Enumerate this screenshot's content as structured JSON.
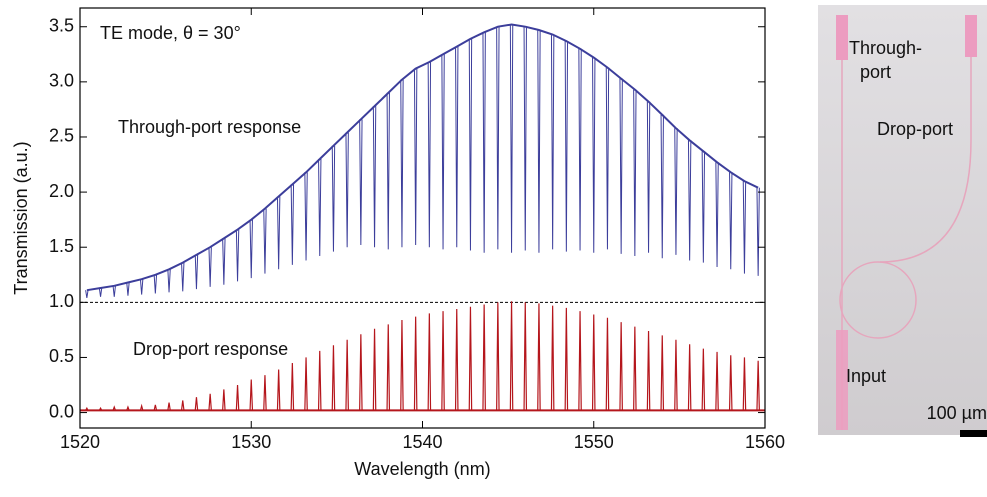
{
  "chart_data": {
    "type": "resonance",
    "annotation": "TE mode, θ = 30°",
    "xlabel": "Wavelength (nm)",
    "ylabel": "Transmission (a.u.)",
    "xlim": [
      1520,
      1560
    ],
    "xticks": [
      1520,
      1530,
      1540,
      1550,
      1560
    ],
    "ylim": [
      -0.14,
      3.67
    ],
    "yticks": [
      {
        "value": 0,
        "label": "0.0"
      },
      {
        "value": 0.5,
        "label": "0.5"
      },
      {
        "value": 1,
        "label": "1.0"
      },
      {
        "value": 1.5,
        "label": "1.5"
      },
      {
        "value": 2,
        "label": "2.0"
      },
      {
        "value": 2.5,
        "label": "2.5"
      },
      {
        "value": 3,
        "label": "3.0"
      },
      {
        "value": 3.5,
        "label": "3.5"
      }
    ],
    "reference_line": 1,
    "series": [
      {
        "name": "Through-port response",
        "color": "#3c3e9b",
        "x": [
          1520.4,
          1521.2,
          1522.0,
          1522.8,
          1523.6,
          1524.4,
          1525.2,
          1526.0,
          1526.8,
          1527.6,
          1528.4,
          1529.2,
          1530.0,
          1530.8,
          1531.6,
          1532.4,
          1533.2,
          1534.0,
          1534.8,
          1535.6,
          1536.4,
          1537.2,
          1538.0,
          1538.8,
          1539.6,
          1540.4,
          1541.2,
          1542.0,
          1542.8,
          1543.6,
          1544.4,
          1545.2,
          1546.0,
          1546.8,
          1547.6,
          1548.4,
          1549.2,
          1550.0,
          1550.8,
          1551.6,
          1552.4,
          1553.2,
          1554.0,
          1554.8,
          1555.6,
          1556.4,
          1557.2,
          1558.0,
          1558.8,
          1559.6
        ],
        "values": [
          1.11,
          1.13,
          1.15,
          1.18,
          1.21,
          1.25,
          1.3,
          1.36,
          1.43,
          1.5,
          1.58,
          1.66,
          1.75,
          1.85,
          1.96,
          2.07,
          2.18,
          2.3,
          2.42,
          2.54,
          2.66,
          2.78,
          2.9,
          3.02,
          3.12,
          3.18,
          3.25,
          3.32,
          3.39,
          3.45,
          3.5,
          3.52,
          3.5,
          3.47,
          3.43,
          3.37,
          3.3,
          3.22,
          3.13,
          3.03,
          2.93,
          2.82,
          2.7,
          2.58,
          2.47,
          2.37,
          2.27,
          2.18,
          2.1,
          2.04
        ],
        "extremes": [
          1.04,
          1.05,
          1.05,
          1.06,
          1.07,
          1.08,
          1.09,
          1.1,
          1.12,
          1.14,
          1.16,
          1.19,
          1.22,
          1.26,
          1.3,
          1.34,
          1.38,
          1.42,
          1.46,
          1.5,
          1.52,
          1.5,
          1.48,
          1.5,
          1.52,
          1.5,
          1.48,
          1.5,
          1.47,
          1.45,
          1.48,
          1.45,
          1.47,
          1.45,
          1.48,
          1.46,
          1.47,
          1.45,
          1.48,
          1.44,
          1.42,
          1.45,
          1.4,
          1.43,
          1.38,
          1.36,
          1.32,
          1.3,
          1.26,
          1.24
        ]
      },
      {
        "name": "Drop-port response",
        "color": "#b5161c",
        "baseline": 0.02,
        "x": [
          1520.4,
          1521.2,
          1522.0,
          1522.8,
          1523.6,
          1524.4,
          1525.2,
          1526.0,
          1526.8,
          1527.6,
          1528.4,
          1529.2,
          1530.0,
          1530.8,
          1531.6,
          1532.4,
          1533.2,
          1534.0,
          1534.8,
          1535.6,
          1536.4,
          1537.2,
          1538.0,
          1538.8,
          1539.6,
          1540.4,
          1541.2,
          1542.0,
          1542.8,
          1543.6,
          1544.4,
          1545.2,
          1546.0,
          1546.8,
          1547.6,
          1548.4,
          1549.2,
          1550.0,
          1550.8,
          1551.6,
          1552.4,
          1553.2,
          1554.0,
          1554.8,
          1555.6,
          1556.4,
          1557.2,
          1558.0,
          1558.8,
          1559.6
        ],
        "values": [
          0.04,
          0.04,
          0.05,
          0.05,
          0.06,
          0.07,
          0.09,
          0.11,
          0.14,
          0.17,
          0.21,
          0.25,
          0.3,
          0.34,
          0.39,
          0.45,
          0.5,
          0.56,
          0.61,
          0.66,
          0.71,
          0.76,
          0.8,
          0.84,
          0.87,
          0.9,
          0.92,
          0.94,
          0.96,
          0.98,
          1.0,
          1.01,
          1.0,
          0.99,
          0.97,
          0.95,
          0.92,
          0.89,
          0.86,
          0.82,
          0.78,
          0.74,
          0.7,
          0.66,
          0.62,
          0.58,
          0.55,
          0.52,
          0.5,
          0.47
        ]
      }
    ]
  },
  "image": {
    "through_port": [
      "Through-",
      "port"
    ],
    "drop_port": "Drop-port",
    "input": "Input",
    "scale_bar": "100 µm"
  }
}
